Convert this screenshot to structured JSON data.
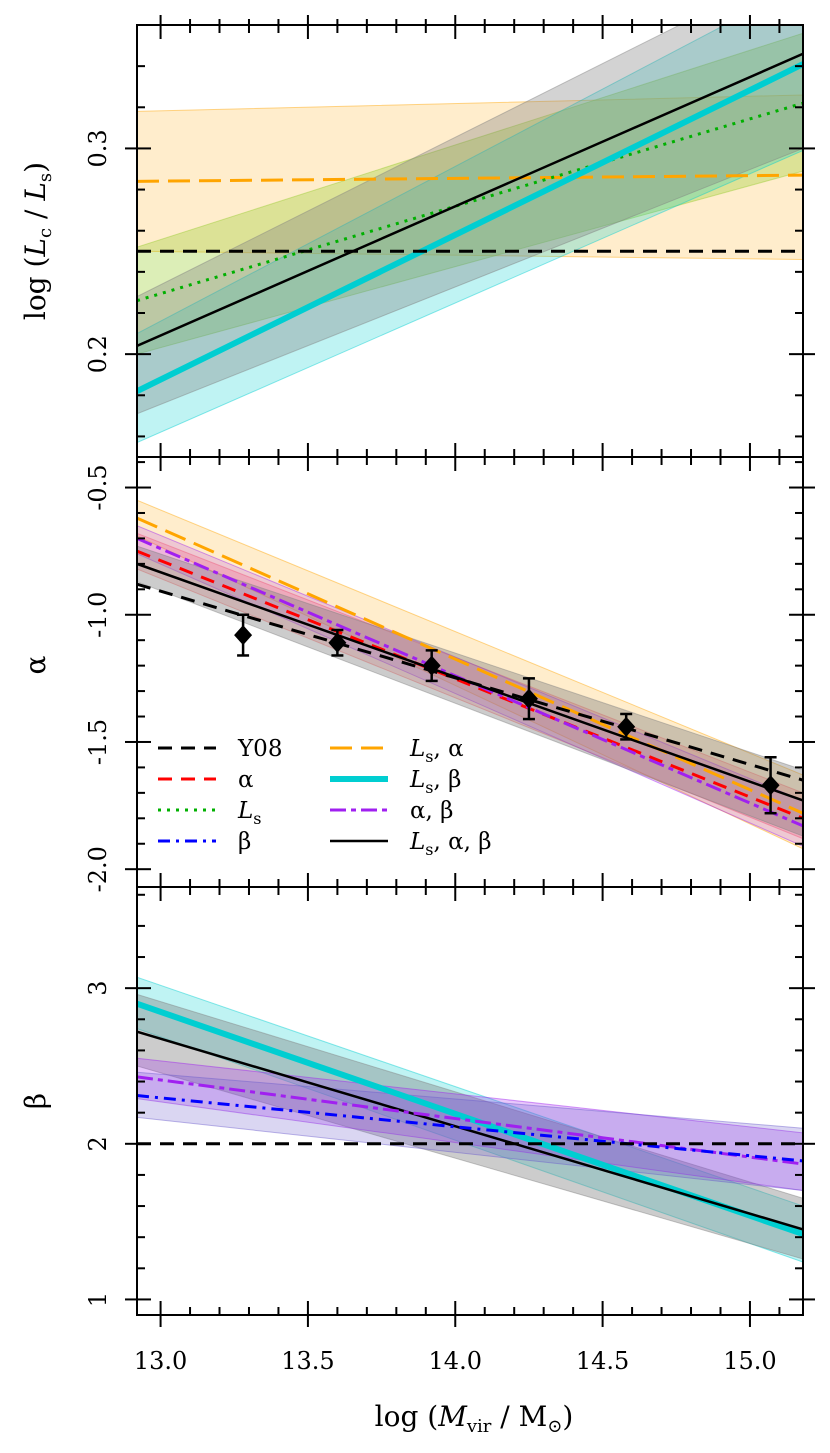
{
  "figure": {
    "xlabel": "log (M_vir / M_⊙)",
    "xlim": [
      12.92,
      15.18
    ],
    "xticks": [
      13.0,
      13.5,
      14.0,
      14.5,
      15.0
    ],
    "xtick_labels": [
      "13.0",
      "13.5",
      "14.0",
      "14.5",
      "15.0"
    ]
  },
  "series_styles": [
    {
      "key": "Y08",
      "color": "#000000",
      "dash": "dashed"
    },
    {
      "key": "alpha",
      "color": "#ff0000",
      "dash": "dashed"
    },
    {
      "key": "Ls",
      "color": "#00b000",
      "dash": "dotted"
    },
    {
      "key": "beta",
      "color": "#0000ff",
      "dash": "dotdash"
    },
    {
      "key": "Ls_alpha",
      "color": "#ffa500",
      "dash": "longdash"
    },
    {
      "key": "Ls_beta",
      "color": "#00ced1",
      "dash": "solid-thick"
    },
    {
      "key": "alpha_beta",
      "color": "#a020f0",
      "dash": "twodash"
    },
    {
      "key": "Ls_alpha_beta",
      "color": "#000000",
      "dash": "solid"
    }
  ],
  "legend": {
    "entries": [
      {
        "key": "Y08",
        "label": "Y08"
      },
      {
        "key": "alpha",
        "label": "α"
      },
      {
        "key": "Ls",
        "label": "L_s"
      },
      {
        "key": "beta",
        "label": "β"
      },
      {
        "key": "Ls_alpha",
        "label": "L_s, α"
      },
      {
        "key": "Ls_beta",
        "label": "L_s, β"
      },
      {
        "key": "alpha_beta",
        "label": "α, β"
      },
      {
        "key": "Ls_alpha_beta",
        "label": "L_s, α, β"
      }
    ]
  },
  "chart_data": [
    {
      "type": "line",
      "panel": "top",
      "ylabel": "log (L_c / L_s)",
      "ylim": [
        0.15,
        0.36
      ],
      "yticks": [
        0.2,
        0.3
      ],
      "ytick_labels": [
        "0.2",
        "0.3"
      ],
      "series": [
        {
          "key": "Ls_alpha",
          "x": [
            12.92,
            15.18
          ],
          "y": [
            0.284,
            0.287
          ],
          "band": {
            "upper": [
              0.318,
              0.326
            ],
            "lower": [
              0.25,
              0.246
            ],
            "color": "#ffa500",
            "opacity": 0.2
          }
        },
        {
          "key": "Ls",
          "x": [
            12.92,
            15.18
          ],
          "y": [
            0.226,
            0.322
          ],
          "band": {
            "upper": [
              0.252,
              0.356
            ],
            "lower": [
              0.2,
              0.289
            ],
            "color": "#9acd32",
            "opacity": 0.35
          }
        },
        {
          "key": "Ls_beta",
          "x": [
            12.92,
            15.18
          ],
          "y": [
            0.182,
            0.341
          ],
          "band": {
            "upper": [
              0.21,
              0.38
            ],
            "lower": [
              0.157,
              0.299
            ],
            "color": "#00ced1",
            "opacity": 0.25
          }
        },
        {
          "key": "Ls_alpha_beta",
          "x": [
            12.92,
            15.18
          ],
          "y": [
            0.204,
            0.346
          ],
          "band": {
            "upper": [
              0.228,
              0.39
            ],
            "lower": [
              0.171,
              0.3
            ],
            "color": "#808080",
            "opacity": 0.35
          }
        },
        {
          "key": "Y08",
          "x": [
            12.92,
            15.18
          ],
          "y": [
            0.25,
            0.25
          ]
        }
      ]
    },
    {
      "type": "line",
      "panel": "middle",
      "ylabel": "α",
      "ylim": [
        -2.07,
        -0.38
      ],
      "yticks": [
        -2.0,
        -1.5,
        -1.0,
        -0.5
      ],
      "ytick_labels": [
        "-2.0",
        "-1.5",
        "-1.0",
        "-0.5"
      ],
      "series": [
        {
          "key": "Ls_alpha",
          "x": [
            12.92,
            15.18
          ],
          "y": [
            -0.62,
            -1.78
          ],
          "band": {
            "upper": [
              -0.55,
              -1.63
            ],
            "lower": [
              -0.69,
              -1.92
            ],
            "color": "#ffa500",
            "opacity": 0.2
          }
        },
        {
          "key": "alpha",
          "x": [
            12.92,
            15.18
          ],
          "y": [
            -0.75,
            -1.8
          ],
          "band": {
            "upper": [
              -0.68,
              -1.7
            ],
            "lower": [
              -0.82,
              -1.88
            ],
            "color": "#ff6060",
            "opacity": 0.25
          }
        },
        {
          "key": "alpha_beta",
          "x": [
            12.92,
            15.18
          ],
          "y": [
            -0.7,
            -1.83
          ],
          "band": {
            "upper": [
              -0.65,
              -1.73
            ],
            "lower": [
              -0.76,
              -1.91
            ],
            "color": "#a020f0",
            "opacity": 0.18
          }
        },
        {
          "key": "Ls_alpha_beta",
          "x": [
            12.92,
            15.18
          ],
          "y": [
            -0.8,
            -1.73
          ],
          "band": {
            "upper": [
              -0.73,
              -1.61
            ],
            "lower": [
              -0.87,
              -1.87
            ],
            "color": "#808080",
            "opacity": 0.4
          }
        },
        {
          "key": "Y08",
          "x": [
            12.92,
            15.18
          ],
          "y": [
            -0.88,
            -1.65
          ]
        }
      ],
      "points": {
        "x": [
          13.28,
          13.6,
          13.92,
          14.25,
          14.58,
          15.07
        ],
        "y": [
          -1.08,
          -1.11,
          -1.2,
          -1.33,
          -1.44,
          -1.67
        ],
        "err": [
          0.08,
          0.05,
          0.06,
          0.08,
          0.05,
          0.11
        ]
      }
    },
    {
      "type": "line",
      "panel": "bottom",
      "ylabel": "β",
      "ylim": [
        0.9,
        3.65
      ],
      "yticks": [
        1,
        2,
        3
      ],
      "ytick_labels": [
        "1",
        "2",
        "3"
      ],
      "series": [
        {
          "key": "Ls_beta",
          "x": [
            12.92,
            15.18
          ],
          "y": [
            2.9,
            1.42
          ],
          "band": {
            "upper": [
              3.07,
              1.6
            ],
            "lower": [
              2.74,
              1.24
            ],
            "color": "#00ced1",
            "opacity": 0.25
          }
        },
        {
          "key": "Ls_alpha_beta",
          "x": [
            12.92,
            15.18
          ],
          "y": [
            2.72,
            1.45
          ],
          "band": {
            "upper": [
              2.96,
              1.65
            ],
            "lower": [
              2.5,
              1.26
            ],
            "color": "#808080",
            "opacity": 0.4
          }
        },
        {
          "key": "alpha_beta",
          "x": [
            12.92,
            15.18
          ],
          "y": [
            2.43,
            1.87
          ],
          "band": {
            "upper": [
              2.55,
              2.07
            ],
            "lower": [
              2.29,
              1.7
            ],
            "color": "#a020f0",
            "opacity": 0.25
          }
        },
        {
          "key": "beta",
          "x": [
            12.92,
            15.18
          ],
          "y": [
            2.31,
            1.89
          ],
          "band": {
            "upper": [
              2.46,
              2.1
            ],
            "lower": [
              2.17,
              1.7
            ],
            "color": "#6a5acd",
            "opacity": 0.25
          }
        },
        {
          "key": "Y08",
          "x": [
            12.92,
            15.18
          ],
          "y": [
            2.0,
            2.0
          ]
        }
      ]
    }
  ]
}
